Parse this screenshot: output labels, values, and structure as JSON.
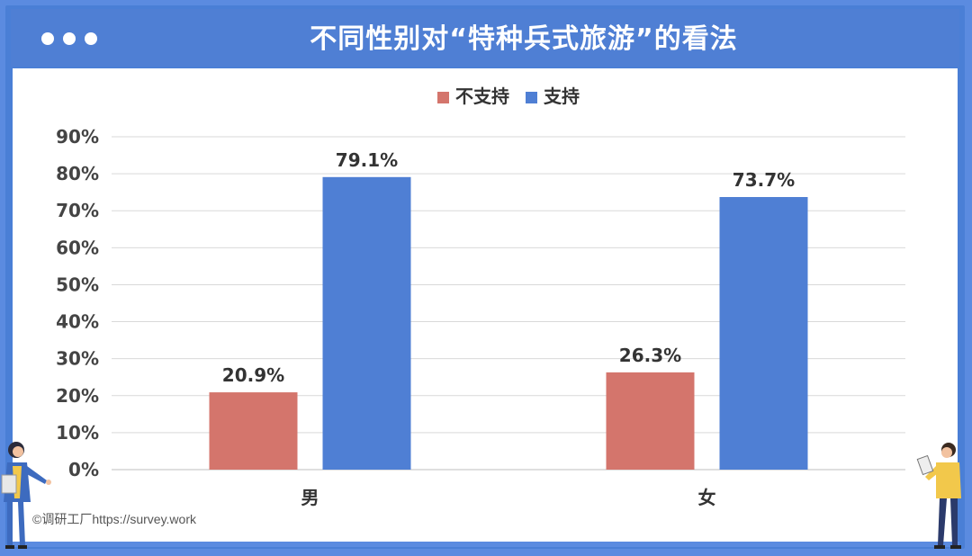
{
  "header": {
    "title": "不同性别对“特种兵式旅游”的看法"
  },
  "watermark": "©调研工厂https://survey.work",
  "colors": {
    "background": "#5b8be0",
    "header": "#4f7fd4",
    "panel": "#ffffff",
    "series_not_support": "#d4756c",
    "series_support": "#4f7fd4",
    "gridline": "#d9d9d9",
    "text": "#333333"
  },
  "chart_data": {
    "type": "bar",
    "title": "不同性别对“特种兵式旅游”的看法",
    "categories": [
      "男",
      "女"
    ],
    "series": [
      {
        "name": "不支持",
        "values": [
          20.9,
          26.3
        ],
        "labels": [
          "20.9%",
          "26.3%"
        ],
        "color": "#d4756c"
      },
      {
        "name": "支持",
        "values": [
          79.1,
          73.7
        ],
        "labels": [
          "79.1%",
          "73.7%"
        ],
        "color": "#4f7fd4"
      }
    ],
    "ylim": [
      0,
      90
    ],
    "yticks": [
      "0%",
      "10%",
      "20%",
      "30%",
      "40%",
      "50%",
      "60%",
      "70%",
      "80%",
      "90%"
    ],
    "grid": true,
    "legend_position": "top"
  }
}
